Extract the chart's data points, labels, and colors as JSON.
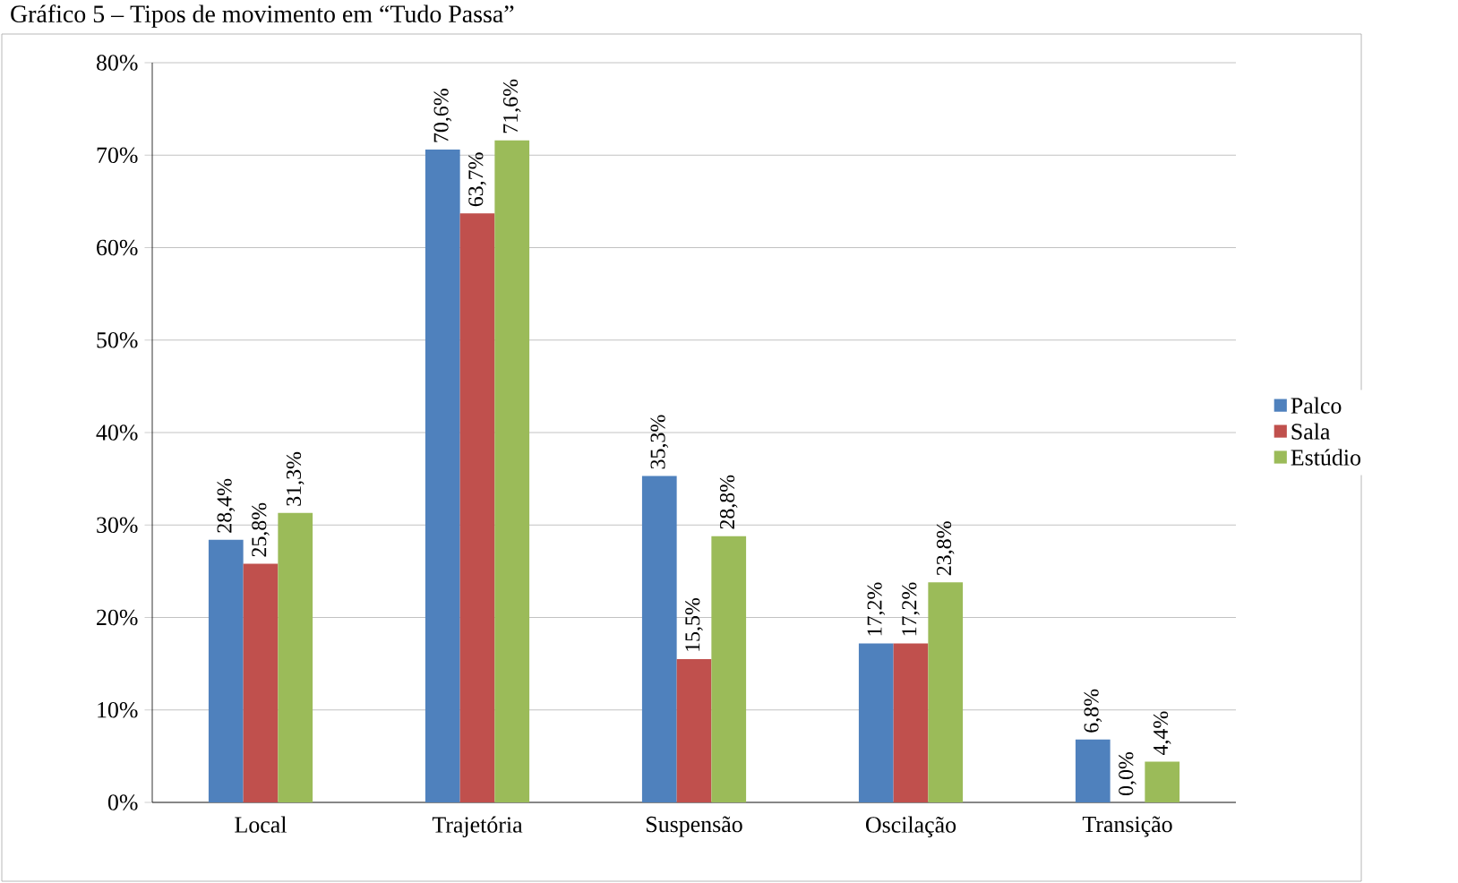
{
  "chart_data": {
    "type": "bar",
    "title": "Gráfico 5 – Tipos de movimento em “Tudo Passa”",
    "categories": [
      "Local",
      "Trajetória",
      "Suspensão",
      "Oscilação",
      "Transição"
    ],
    "series": [
      {
        "name": "Palco",
        "color": "#4f81bd",
        "values": [
          28.4,
          70.6,
          35.3,
          17.2,
          6.8
        ],
        "value_labels": [
          "28,4%",
          "70,6%",
          "35,3%",
          "17,2%",
          "6,8%"
        ]
      },
      {
        "name": "Sala",
        "color": "#c0504d",
        "values": [
          25.8,
          63.7,
          15.5,
          17.2,
          0.0
        ],
        "value_labels": [
          "25,8%",
          "63,7%",
          "15,5%",
          "17,2%",
          "0,0%"
        ]
      },
      {
        "name": "Estúdio",
        "color": "#9bbb59",
        "values": [
          31.3,
          71.6,
          28.8,
          23.8,
          4.4
        ],
        "value_labels": [
          "31,3%",
          "71,6%",
          "28,8%",
          "23,8%",
          "4,4%"
        ]
      }
    ],
    "ylim": [
      0,
      80
    ],
    "yticks": [
      {
        "value": 0,
        "label": "0%"
      },
      {
        "value": 10,
        "label": "10%"
      },
      {
        "value": 20,
        "label": "20%"
      },
      {
        "value": 30,
        "label": "30%"
      },
      {
        "value": 40,
        "label": "40%"
      },
      {
        "value": 50,
        "label": "50%"
      },
      {
        "value": 60,
        "label": "60%"
      },
      {
        "value": 70,
        "label": "70%"
      },
      {
        "value": 80,
        "label": "80%"
      }
    ],
    "grid": "y",
    "legend": "right"
  }
}
